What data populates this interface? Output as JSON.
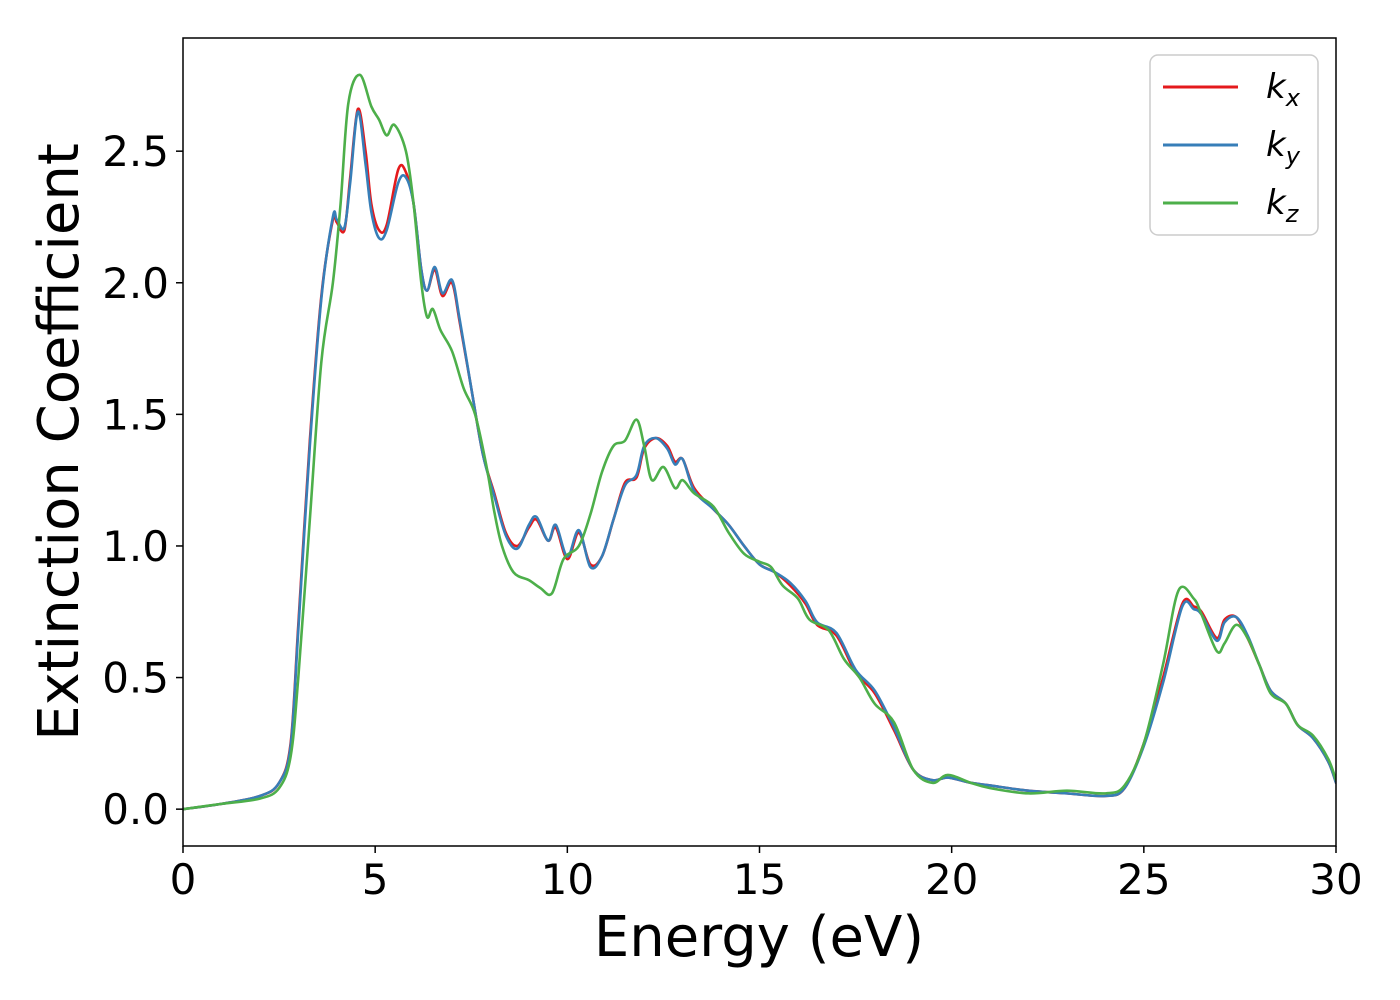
{
  "chart_data": {
    "type": "line",
    "title": "",
    "xlabel": "Energy (eV)",
    "ylabel": "Extinction Coefficient",
    "xlim": [
      0,
      30
    ],
    "ylim": [
      -0.14,
      2.93
    ],
    "xticks": [
      0,
      5,
      10,
      15,
      20,
      25,
      30
    ],
    "xtick_labels": [
      "0",
      "5",
      "10",
      "15",
      "20",
      "25",
      "30"
    ],
    "yticks": [
      0.0,
      0.5,
      1.0,
      1.5,
      2.0,
      2.5
    ],
    "ytick_labels": [
      "0.0",
      "0.5",
      "1.0",
      "1.5",
      "2.0",
      "2.5"
    ],
    "grid": false,
    "legend_position": "top-right",
    "series": [
      {
        "name": "k_x",
        "legend_main": "k",
        "legend_sub": "x",
        "color": "#e41a1c",
        "x": [
          0,
          1,
          2,
          2.5,
          2.8,
          3.0,
          3.3,
          3.6,
          3.9,
          4.0,
          4.2,
          4.35,
          4.55,
          4.75,
          4.9,
          5.1,
          5.3,
          5.6,
          5.8,
          6.0,
          6.2,
          6.35,
          6.55,
          6.75,
          7.0,
          7.2,
          7.5,
          7.8,
          8.1,
          8.4,
          8.7,
          9.0,
          9.2,
          9.5,
          9.7,
          10.0,
          10.3,
          10.6,
          10.9,
          11.2,
          11.5,
          11.8,
          12.0,
          12.3,
          12.6,
          12.8,
          13.0,
          13.3,
          13.8,
          14.2,
          14.6,
          15.0,
          15.4,
          15.8,
          16.2,
          16.5,
          17.0,
          17.5,
          18.0,
          18.5,
          19.0,
          19.5,
          19.9,
          20.5,
          21.0,
          22.0,
          23.0,
          24.0,
          24.5,
          25.0,
          25.5,
          26.0,
          26.3,
          26.5,
          26.9,
          27.1,
          27.4,
          27.7,
          28.0,
          28.3,
          28.7,
          29.0,
          29.4,
          29.8,
          30.0
        ],
        "values": [
          0.0,
          0.02,
          0.05,
          0.1,
          0.25,
          0.7,
          1.4,
          1.95,
          2.24,
          2.23,
          2.2,
          2.4,
          2.66,
          2.5,
          2.3,
          2.2,
          2.22,
          2.43,
          2.42,
          2.3,
          2.05,
          1.97,
          2.05,
          1.95,
          2.0,
          1.85,
          1.6,
          1.35,
          1.2,
          1.05,
          1.0,
          1.07,
          1.1,
          1.02,
          1.07,
          0.95,
          1.05,
          0.93,
          0.96,
          1.1,
          1.24,
          1.26,
          1.37,
          1.41,
          1.38,
          1.32,
          1.33,
          1.22,
          1.14,
          1.08,
          1.0,
          0.93,
          0.9,
          0.85,
          0.78,
          0.7,
          0.66,
          0.52,
          0.44,
          0.3,
          0.15,
          0.11,
          0.12,
          0.1,
          0.09,
          0.07,
          0.06,
          0.05,
          0.08,
          0.25,
          0.5,
          0.78,
          0.77,
          0.75,
          0.65,
          0.72,
          0.73,
          0.65,
          0.55,
          0.45,
          0.4,
          0.32,
          0.27,
          0.18,
          0.1
        ]
      },
      {
        "name": "k_y",
        "legend_main": "k",
        "legend_sub": "y",
        "color": "#377eb8",
        "x": [
          0,
          1,
          2,
          2.5,
          2.8,
          3.0,
          3.3,
          3.6,
          3.9,
          4.0,
          4.2,
          4.35,
          4.55,
          4.75,
          4.9,
          5.1,
          5.3,
          5.6,
          5.8,
          6.0,
          6.2,
          6.35,
          6.55,
          6.75,
          7.0,
          7.2,
          7.5,
          7.8,
          8.1,
          8.4,
          8.7,
          9.0,
          9.2,
          9.5,
          9.7,
          10.0,
          10.3,
          10.6,
          10.9,
          11.2,
          11.5,
          11.8,
          12.0,
          12.3,
          12.6,
          12.8,
          13.0,
          13.3,
          13.8,
          14.2,
          14.6,
          15.0,
          15.4,
          15.8,
          16.2,
          16.5,
          17.0,
          17.5,
          18.0,
          18.5,
          19.0,
          19.5,
          19.9,
          20.5,
          21.0,
          22.0,
          23.0,
          24.0,
          24.5,
          25.0,
          25.5,
          26.0,
          26.3,
          26.5,
          26.9,
          27.1,
          27.4,
          27.7,
          28.0,
          28.3,
          28.7,
          29.0,
          29.4,
          29.8,
          30.0
        ],
        "values": [
          0.0,
          0.02,
          0.05,
          0.1,
          0.24,
          0.68,
          1.38,
          1.94,
          2.25,
          2.24,
          2.21,
          2.38,
          2.65,
          2.45,
          2.27,
          2.17,
          2.2,
          2.38,
          2.4,
          2.3,
          2.05,
          1.97,
          2.06,
          1.96,
          2.01,
          1.86,
          1.6,
          1.35,
          1.19,
          1.04,
          0.99,
          1.08,
          1.11,
          1.02,
          1.08,
          0.96,
          1.06,
          0.92,
          0.96,
          1.1,
          1.23,
          1.27,
          1.38,
          1.41,
          1.37,
          1.31,
          1.33,
          1.21,
          1.14,
          1.08,
          1.0,
          0.93,
          0.9,
          0.86,
          0.79,
          0.71,
          0.67,
          0.53,
          0.45,
          0.31,
          0.15,
          0.11,
          0.12,
          0.1,
          0.09,
          0.07,
          0.06,
          0.05,
          0.08,
          0.24,
          0.48,
          0.77,
          0.76,
          0.74,
          0.64,
          0.71,
          0.73,
          0.66,
          0.55,
          0.45,
          0.4,
          0.32,
          0.27,
          0.18,
          0.1
        ]
      },
      {
        "name": "k_z",
        "legend_main": "k",
        "legend_sub": "z",
        "color": "#4daf4a",
        "x": [
          0,
          1,
          2,
          2.5,
          2.8,
          3.0,
          3.3,
          3.6,
          3.9,
          4.1,
          4.3,
          4.6,
          4.9,
          5.1,
          5.3,
          5.5,
          5.8,
          6.0,
          6.2,
          6.35,
          6.5,
          6.7,
          7.0,
          7.3,
          7.6,
          7.9,
          8.1,
          8.3,
          8.6,
          9.0,
          9.3,
          9.6,
          9.9,
          10.3,
          10.6,
          10.9,
          11.2,
          11.5,
          11.8,
          12.0,
          12.2,
          12.5,
          12.8,
          13.0,
          13.3,
          13.8,
          14.2,
          14.6,
          15.0,
          15.3,
          15.6,
          16.0,
          16.3,
          16.8,
          17.2,
          17.6,
          18.0,
          18.5,
          19.0,
          19.5,
          19.9,
          20.5,
          21.0,
          22.0,
          23.0,
          24.0,
          24.5,
          25.0,
          25.5,
          25.9,
          26.3,
          26.5,
          26.9,
          27.1,
          27.4,
          27.7,
          28.0,
          28.3,
          28.7,
          29.0,
          29.4,
          29.8,
          30.0
        ],
        "values": [
          0.0,
          0.02,
          0.04,
          0.08,
          0.2,
          0.5,
          1.1,
          1.7,
          2.0,
          2.3,
          2.68,
          2.79,
          2.67,
          2.62,
          2.56,
          2.6,
          2.5,
          2.3,
          2.0,
          1.87,
          1.9,
          1.82,
          1.74,
          1.6,
          1.5,
          1.3,
          1.13,
          1.0,
          0.9,
          0.87,
          0.84,
          0.82,
          0.95,
          1.0,
          1.12,
          1.28,
          1.38,
          1.4,
          1.48,
          1.38,
          1.25,
          1.3,
          1.22,
          1.25,
          1.2,
          1.15,
          1.05,
          0.97,
          0.94,
          0.92,
          0.85,
          0.8,
          0.72,
          0.68,
          0.57,
          0.5,
          0.4,
          0.33,
          0.15,
          0.1,
          0.13,
          0.1,
          0.08,
          0.06,
          0.07,
          0.06,
          0.09,
          0.25,
          0.55,
          0.83,
          0.8,
          0.74,
          0.6,
          0.63,
          0.7,
          0.65,
          0.55,
          0.44,
          0.4,
          0.32,
          0.28,
          0.19,
          0.11
        ]
      }
    ]
  }
}
